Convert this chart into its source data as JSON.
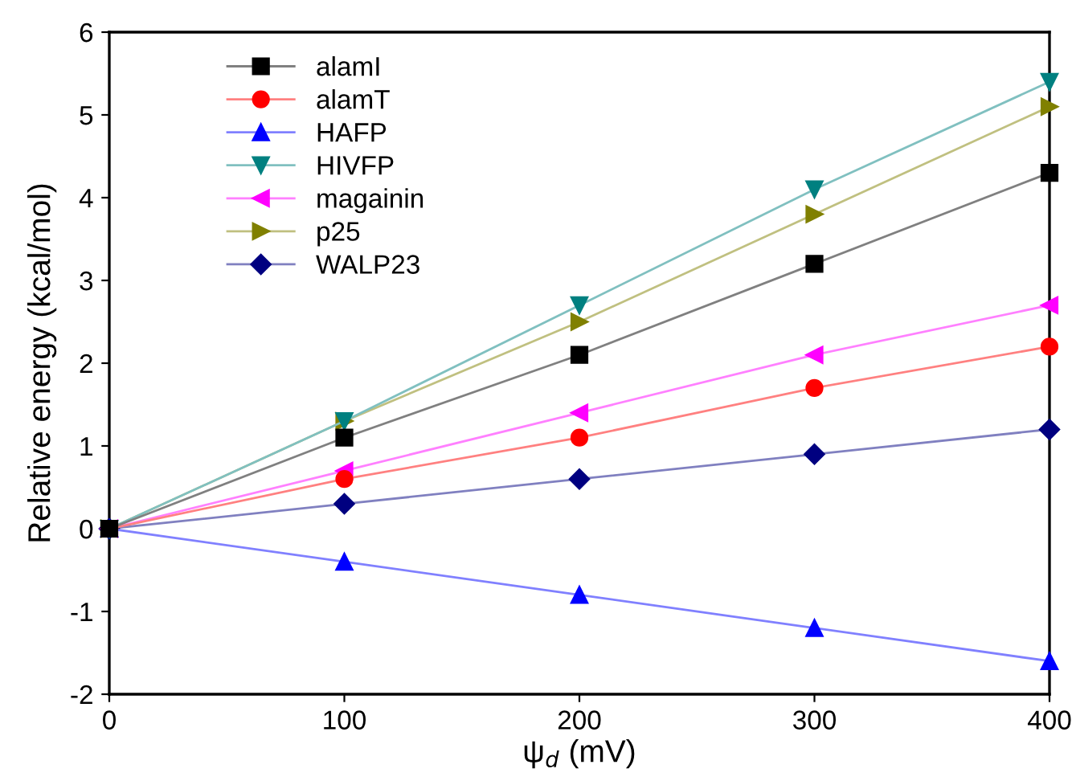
{
  "chart_data": {
    "type": "line",
    "xlabel": "ψ$_{d}$ (mV)",
    "ylabel": "Relative energy (kcal/mol)",
    "x": [
      0,
      100,
      200,
      300,
      400
    ],
    "series": [
      {
        "name": "alamI",
        "color": "#000000",
        "marker": "square",
        "values": [
          0,
          1.1,
          2.1,
          3.2,
          4.3
        ]
      },
      {
        "name": "alamT",
        "color": "#ff0000",
        "marker": "circle",
        "values": [
          0,
          0.6,
          1.1,
          1.7,
          2.2
        ]
      },
      {
        "name": "HAFP",
        "color": "#0000ff",
        "marker": "triangle",
        "values": [
          0,
          -0.4,
          -0.8,
          -1.2,
          -1.6
        ]
      },
      {
        "name": "HIVFP",
        "color": "#008080",
        "marker": "triangle-down",
        "values": [
          0,
          1.3,
          2.7,
          4.1,
          5.4
        ]
      },
      {
        "name": "magainin",
        "color": "#ff00ff",
        "marker": "triangle-left",
        "values": [
          0,
          0.7,
          1.4,
          2.1,
          2.7
        ]
      },
      {
        "name": "p25",
        "color": "#808000",
        "marker": "triangle-right",
        "values": [
          0,
          1.3,
          2.5,
          3.8,
          5.1
        ]
      },
      {
        "name": "WALP23",
        "color": "#000080",
        "marker": "diamond",
        "values": [
          0,
          0.3,
          0.6,
          0.9,
          1.2
        ]
      }
    ],
    "xlim": [
      0,
      400
    ],
    "xticks": [
      0,
      100,
      200,
      300,
      400
    ],
    "ylim": [
      -2,
      6
    ],
    "yticks": [
      -2,
      -1,
      0,
      1,
      2,
      3,
      4,
      5,
      6
    ],
    "grid": false,
    "legend": "top left",
    "line_style": "solid"
  }
}
